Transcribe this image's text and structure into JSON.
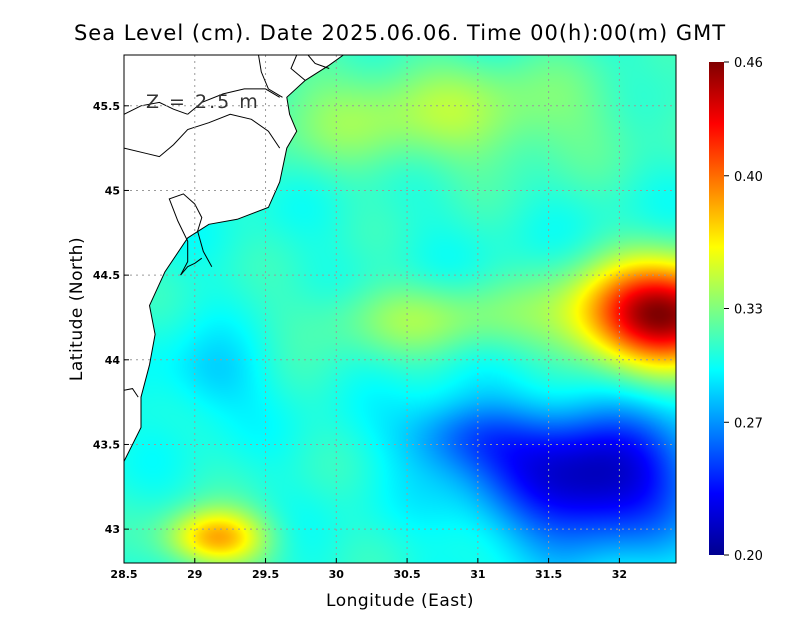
{
  "chart_data": {
    "type": "heatmap",
    "title": "Sea Level (cm). Date 2025.06.06. Time 00(h):00(m) GMT",
    "xlabel": "Longitude (East)",
    "ylabel": "Latitude (North)",
    "annotation": "Z = 2.5 m",
    "xlim": [
      28.5,
      32.4
    ],
    "ylim": [
      42.8,
      45.8
    ],
    "x_ticks": [
      28.5,
      29,
      29.5,
      30,
      30.5,
      31,
      31.5,
      32
    ],
    "x_tick_labels": [
      "28.5",
      "29",
      "29.5",
      "30",
      "30.5",
      "31",
      "31.5",
      "32"
    ],
    "y_ticks": [
      43,
      43.5,
      44,
      44.5,
      45,
      45.5
    ],
    "y_tick_labels": [
      "43",
      "43.5",
      "44",
      "44.5",
      "45",
      "45.5"
    ],
    "grid": true,
    "colorbar": {
      "min": 0.2,
      "max": 0.46,
      "ticks": [
        0.2,
        0.27,
        0.33,
        0.4,
        0.46
      ],
      "tick_labels": [
        "0.20",
        "0.27",
        "0.33",
        "0.40",
        "0.46"
      ],
      "colormap": "jet"
    },
    "field_base": 0.305,
    "field_features": [
      {
        "name": "eastern-high",
        "lon": 32.3,
        "lat": 44.27,
        "sx": 0.6,
        "sy": 0.3,
        "amp": 0.155
      },
      {
        "name": "south-west-high",
        "lon": 29.15,
        "lat": 42.95,
        "sx": 0.35,
        "sy": 0.17,
        "amp": 0.08
      },
      {
        "name": "northern-band",
        "lon": 30.7,
        "lat": 45.45,
        "sx": 1.4,
        "sy": 0.35,
        "amp": 0.035
      },
      {
        "name": "central-band",
        "lon": 30.6,
        "lat": 44.25,
        "sx": 0.8,
        "sy": 0.22,
        "amp": 0.03
      },
      {
        "name": "south-east-low",
        "lon": 31.8,
        "lat": 43.3,
        "sx": 0.75,
        "sy": 0.4,
        "amp": -0.095
      },
      {
        "name": "south-central-low",
        "lon": 30.9,
        "lat": 43.55,
        "sx": 0.45,
        "sy": 0.22,
        "amp": -0.04
      },
      {
        "name": "western-low",
        "lon": 29.1,
        "lat": 43.9,
        "sx": 0.35,
        "sy": 0.25,
        "amp": -0.02
      }
    ],
    "coastline": {
      "sea_edge": [
        [
          28.5,
          43.4
        ],
        [
          28.62,
          43.6
        ],
        [
          28.62,
          43.78
        ],
        [
          28.68,
          43.97
        ],
        [
          28.72,
          44.15
        ],
        [
          28.68,
          44.32
        ],
        [
          28.79,
          44.52
        ],
        [
          28.95,
          44.72
        ],
        [
          29.1,
          44.8
        ],
        [
          29.3,
          44.83
        ],
        [
          29.52,
          44.9
        ],
        [
          29.6,
          45.05
        ],
        [
          29.65,
          45.25
        ],
        [
          29.72,
          45.35
        ],
        [
          29.67,
          45.45
        ],
        [
          29.65,
          45.55
        ],
        [
          29.78,
          45.65
        ],
        [
          29.95,
          45.74
        ],
        [
          30.05,
          45.8
        ]
      ],
      "inland_lines": [
        [
          [
            28.5,
            45.25
          ],
          [
            28.65,
            45.22
          ],
          [
            28.75,
            45.2
          ],
          [
            28.85,
            45.27
          ],
          [
            28.95,
            45.36
          ],
          [
            29.1,
            45.4
          ],
          [
            29.25,
            45.45
          ],
          [
            29.4,
            45.42
          ],
          [
            29.52,
            45.35
          ],
          [
            29.6,
            45.25
          ]
        ],
        [
          [
            28.5,
            45.45
          ],
          [
            28.62,
            45.5
          ],
          [
            28.75,
            45.52
          ],
          [
            28.85,
            45.48
          ],
          [
            28.95,
            45.45
          ]
        ],
        [
          [
            28.95,
            45.45
          ],
          [
            29.05,
            45.52
          ],
          [
            29.2,
            45.57
          ],
          [
            29.35,
            45.6
          ],
          [
            29.5,
            45.6
          ],
          [
            29.6,
            45.55
          ]
        ],
        [
          [
            29.45,
            45.8
          ],
          [
            29.47,
            45.7
          ],
          [
            29.52,
            45.6
          ],
          [
            29.62,
            45.55
          ]
        ],
        [
          [
            29.72,
            45.8
          ],
          [
            29.68,
            45.72
          ],
          [
            29.78,
            45.65
          ]
        ],
        [
          [
            29.8,
            45.8
          ],
          [
            29.85,
            45.75
          ],
          [
            29.95,
            45.72
          ]
        ],
        [
          [
            28.9,
            44.5
          ],
          [
            28.95,
            44.58
          ],
          [
            28.95,
            44.7
          ],
          [
            28.88,
            44.82
          ],
          [
            28.82,
            44.95
          ],
          [
            28.92,
            44.98
          ],
          [
            29.0,
            44.92
          ],
          [
            29.05,
            44.84
          ],
          [
            29.02,
            44.76
          ],
          [
            29.06,
            44.64
          ],
          [
            29.12,
            44.55
          ]
        ],
        [
          [
            28.9,
            44.5
          ],
          [
            28.95,
            44.55
          ],
          [
            29.0,
            44.57
          ],
          [
            29.05,
            44.6
          ]
        ],
        [
          [
            28.5,
            43.82
          ],
          [
            28.56,
            43.83
          ],
          [
            28.6,
            43.78
          ]
        ]
      ]
    }
  }
}
